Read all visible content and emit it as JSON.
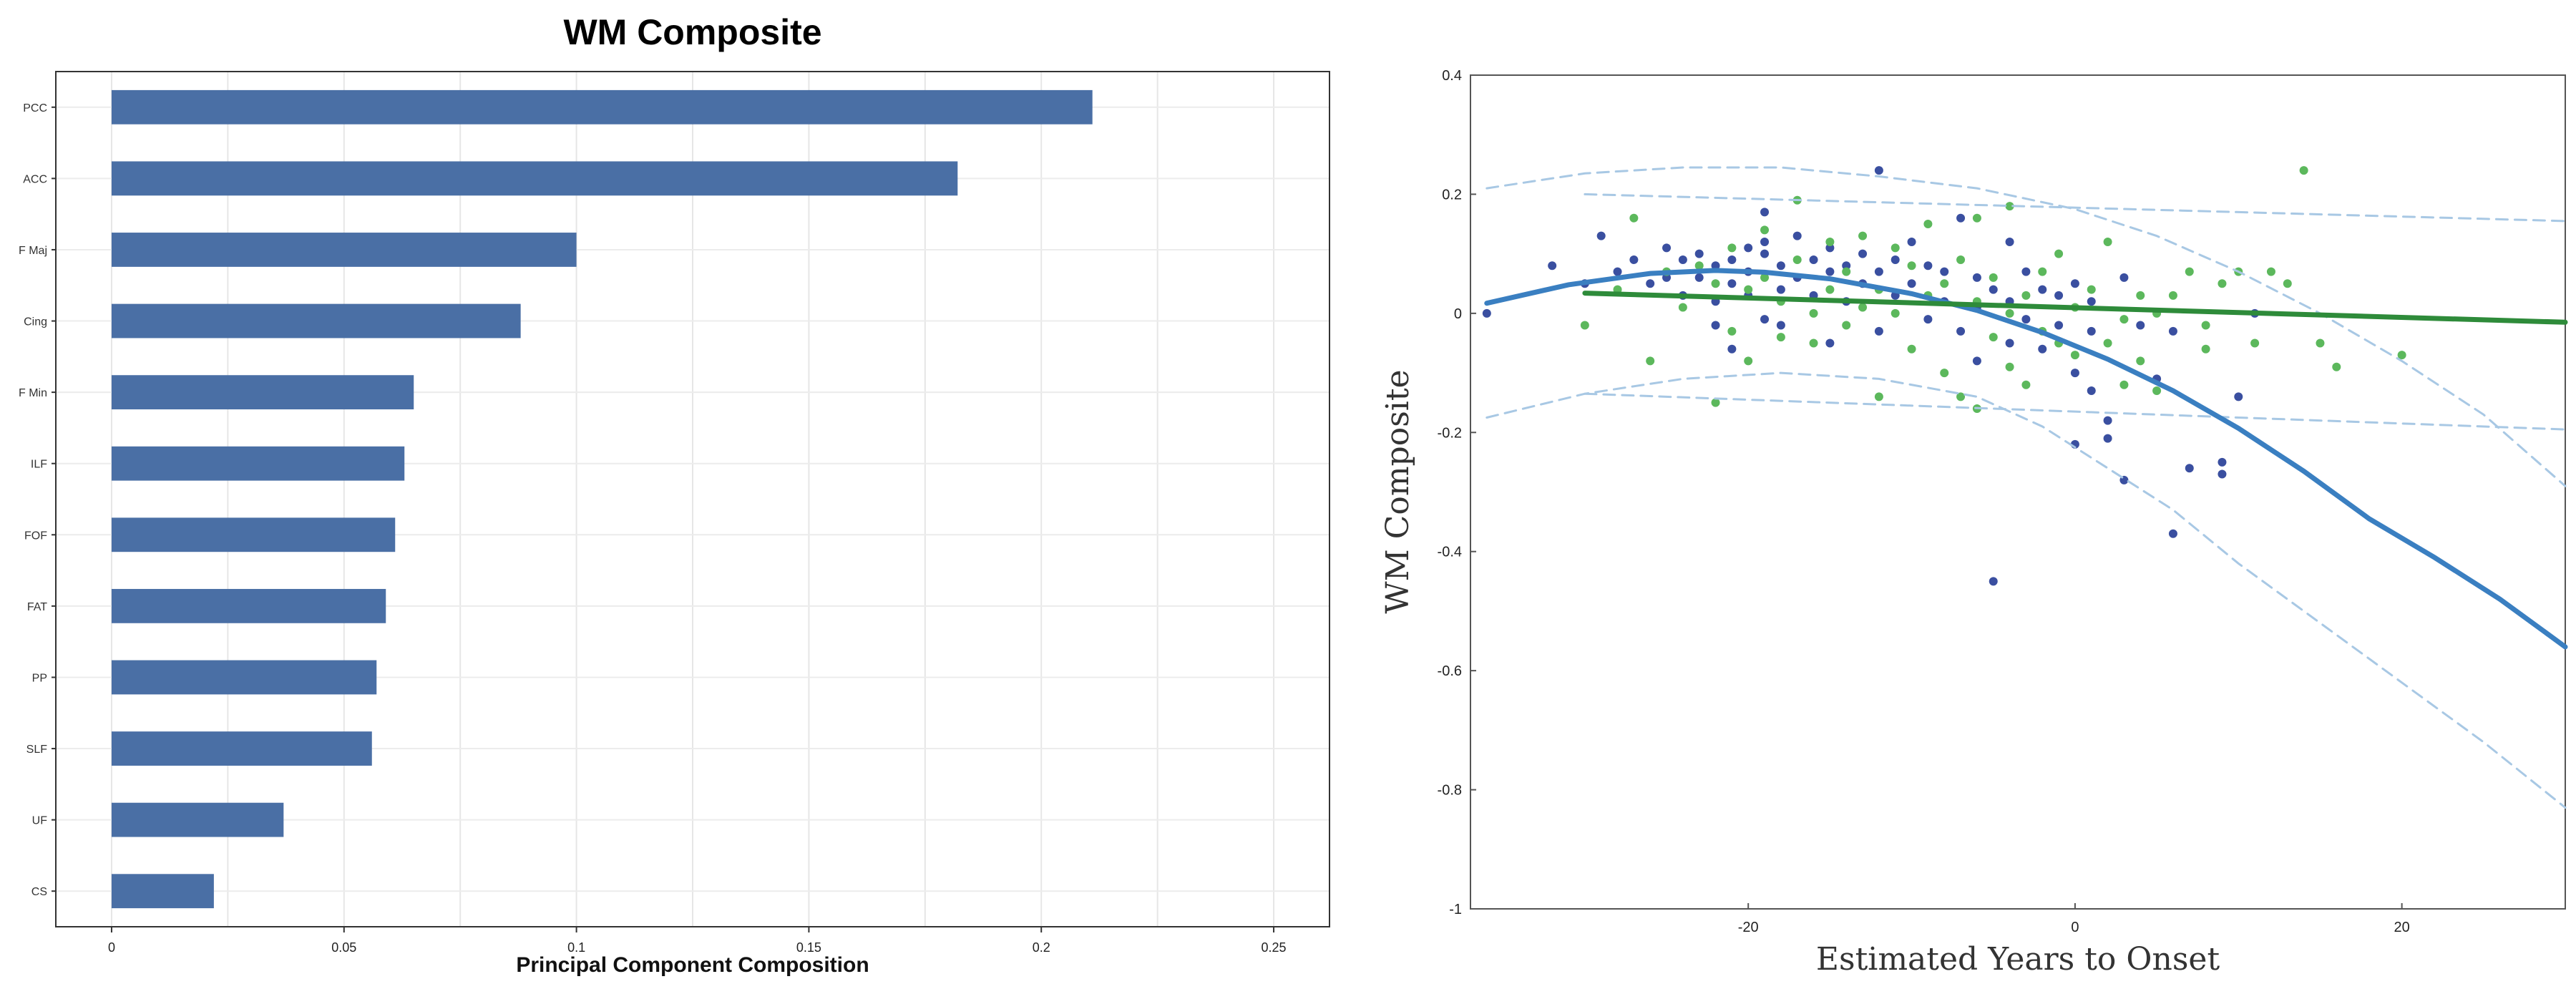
{
  "chart_data": [
    {
      "type": "bar",
      "orientation": "horizontal",
      "title": "WM Composite",
      "xlabel": "Principal Component Composition",
      "ylabel": "",
      "categories": [
        "PCC",
        "ACC",
        "F Maj",
        "Cing",
        "F Min",
        "ILF",
        "FOF",
        "FAT",
        "PP",
        "SLF",
        "UF",
        "CS"
      ],
      "values": [
        0.211,
        0.182,
        0.1,
        0.088,
        0.065,
        0.063,
        0.061,
        0.059,
        0.057,
        0.056,
        0.037,
        0.022
      ],
      "xlim": [
        -0.012,
        0.262
      ],
      "xticks": [
        0,
        0.05,
        0.1,
        0.15,
        0.2,
        0.25
      ],
      "xtick_labels": [
        "0",
        "0.05",
        "0.1",
        "0.15",
        "0.2",
        "0.25"
      ],
      "grid": true,
      "bar_color": "#4a6fa5"
    },
    {
      "type": "scatter",
      "title": "",
      "xlabel": "Estimated Years to Onset",
      "ylabel": "WM Composite",
      "xlim": [
        -37,
        30
      ],
      "ylim": [
        -1,
        0.4
      ],
      "xticks": [
        -20,
        0,
        20
      ],
      "xtick_labels": [
        "-20",
        "0",
        "20"
      ],
      "yticks": [
        0.4,
        0.2,
        0,
        -0.2,
        -0.4,
        -0.6,
        -0.8,
        -1
      ],
      "ytick_labels": [
        "0.4",
        "0.2",
        "0",
        "-0.2",
        "-0.4",
        "-0.6",
        "-0.8",
        "-1"
      ],
      "grid": false,
      "series": [
        {
          "color": "#3a4fa0",
          "points": [
            [
              -36,
              0.0
            ],
            [
              -32,
              0.08
            ],
            [
              -30,
              0.05
            ],
            [
              -29,
              0.13
            ],
            [
              -28,
              0.07
            ],
            [
              -27,
              0.09
            ],
            [
              -26,
              0.05
            ],
            [
              -25,
              0.11
            ],
            [
              -25,
              0.06
            ],
            [
              -24,
              0.09
            ],
            [
              -24,
              0.03
            ],
            [
              -23,
              0.1
            ],
            [
              -23,
              0.06
            ],
            [
              -22,
              0.08
            ],
            [
              -22,
              0.02
            ],
            [
              -22,
              -0.02
            ],
            [
              -21,
              0.09
            ],
            [
              -21,
              0.05
            ],
            [
              -21,
              -0.06
            ],
            [
              -20,
              0.11
            ],
            [
              -20,
              0.07
            ],
            [
              -20,
              0.03
            ],
            [
              -19,
              0.17
            ],
            [
              -19,
              0.1
            ],
            [
              -19,
              0.12
            ],
            [
              -19,
              -0.01
            ],
            [
              -18,
              0.08
            ],
            [
              -18,
              0.04
            ],
            [
              -18,
              -0.02
            ],
            [
              -17,
              0.13
            ],
            [
              -17,
              0.06
            ],
            [
              -16,
              0.09
            ],
            [
              -16,
              0.03
            ],
            [
              -15,
              0.11
            ],
            [
              -15,
              0.07
            ],
            [
              -15,
              -0.05
            ],
            [
              -14,
              0.08
            ],
            [
              -14,
              0.02
            ],
            [
              -13,
              0.1
            ],
            [
              -13,
              0.05
            ],
            [
              -12,
              0.24
            ],
            [
              -12,
              0.07
            ],
            [
              -12,
              -0.03
            ],
            [
              -11,
              0.09
            ],
            [
              -11,
              0.03
            ],
            [
              -10,
              0.05
            ],
            [
              -10,
              0.12
            ],
            [
              -9,
              0.08
            ],
            [
              -9,
              -0.01
            ],
            [
              -8,
              0.02
            ],
            [
              -8,
              0.07
            ],
            [
              -7,
              0.16
            ],
            [
              -7,
              -0.03
            ],
            [
              -6,
              0.06
            ],
            [
              -6,
              0.01
            ],
            [
              -6,
              -0.08
            ],
            [
              -5,
              0.04
            ],
            [
              -5,
              -0.45
            ],
            [
              -4,
              0.12
            ],
            [
              -4,
              0.02
            ],
            [
              -4,
              -0.05
            ],
            [
              -3,
              0.07
            ],
            [
              -3,
              -0.01
            ],
            [
              -2,
              0.04
            ],
            [
              -2,
              -0.06
            ],
            [
              -1,
              0.03
            ],
            [
              -1,
              -0.02
            ],
            [
              0,
              0.05
            ],
            [
              0,
              -0.1
            ],
            [
              0,
              -0.22
            ],
            [
              1,
              0.02
            ],
            [
              1,
              -0.03
            ],
            [
              1,
              -0.13
            ],
            [
              2,
              -0.18
            ],
            [
              2,
              -0.21
            ],
            [
              3,
              -0.28
            ],
            [
              3,
              0.06
            ],
            [
              4,
              -0.02
            ],
            [
              5,
              -0.11
            ],
            [
              6,
              -0.03
            ],
            [
              6,
              -0.37
            ],
            [
              7,
              -0.26
            ],
            [
              9,
              -0.25
            ],
            [
              9,
              -0.27
            ],
            [
              10,
              -0.14
            ],
            [
              11,
              0.0
            ]
          ]
        },
        {
          "color": "#5cb85c",
          "points": [
            [
              -30,
              -0.02
            ],
            [
              -28,
              0.04
            ],
            [
              -27,
              0.16
            ],
            [
              -26,
              -0.08
            ],
            [
              -25,
              0.07
            ],
            [
              -24,
              0.01
            ],
            [
              -23,
              0.08
            ],
            [
              -22,
              0.05
            ],
            [
              -22,
              -0.15
            ],
            [
              -21,
              0.11
            ],
            [
              -21,
              -0.03
            ],
            [
              -20,
              0.04
            ],
            [
              -20,
              -0.08
            ],
            [
              -19,
              0.06
            ],
            [
              -19,
              0.14
            ],
            [
              -18,
              0.02
            ],
            [
              -18,
              -0.04
            ],
            [
              -17,
              0.19
            ],
            [
              -17,
              0.09
            ],
            [
              -16,
              0.0
            ],
            [
              -16,
              -0.05
            ],
            [
              -15,
              0.12
            ],
            [
              -15,
              0.04
            ],
            [
              -14,
              0.07
            ],
            [
              -14,
              -0.02
            ],
            [
              -13,
              0.13
            ],
            [
              -13,
              0.01
            ],
            [
              -12,
              0.04
            ],
            [
              -12,
              -0.14
            ],
            [
              -11,
              0.11
            ],
            [
              -11,
              0.0
            ],
            [
              -10,
              0.08
            ],
            [
              -10,
              -0.06
            ],
            [
              -9,
              0.15
            ],
            [
              -9,
              0.03
            ],
            [
              -8,
              0.05
            ],
            [
              -8,
              -0.1
            ],
            [
              -7,
              0.09
            ],
            [
              -7,
              -0.14
            ],
            [
              -6,
              0.16
            ],
            [
              -6,
              0.02
            ],
            [
              -6,
              -0.16
            ],
            [
              -5,
              0.06
            ],
            [
              -5,
              -0.04
            ],
            [
              -4,
              0.18
            ],
            [
              -4,
              0.0
            ],
            [
              -4,
              -0.09
            ],
            [
              -3,
              0.03
            ],
            [
              -3,
              -0.12
            ],
            [
              -2,
              0.07
            ],
            [
              -2,
              -0.03
            ],
            [
              -1,
              0.1
            ],
            [
              -1,
              -0.05
            ],
            [
              0,
              0.01
            ],
            [
              0,
              -0.07
            ],
            [
              1,
              0.04
            ],
            [
              2,
              -0.05
            ],
            [
              2,
              0.12
            ],
            [
              3,
              -0.01
            ],
            [
              3,
              -0.12
            ],
            [
              4,
              0.03
            ],
            [
              4,
              -0.08
            ],
            [
              5,
              0.0
            ],
            [
              5,
              -0.13
            ],
            [
              6,
              0.03
            ],
            [
              7,
              0.07
            ],
            [
              8,
              -0.02
            ],
            [
              8,
              -0.06
            ],
            [
              9,
              0.05
            ],
            [
              10,
              0.07
            ],
            [
              11,
              -0.05
            ],
            [
              12,
              0.07
            ],
            [
              13,
              0.05
            ],
            [
              14,
              0.24
            ],
            [
              15,
              -0.05
            ],
            [
              16,
              -0.09
            ],
            [
              20,
              -0.07
            ]
          ]
        }
      ],
      "curves": [
        {
          "color": "#3a7fc1",
          "style": "solid",
          "points": [
            [
              -36,
              0.017
            ],
            [
              -31,
              0.048
            ],
            [
              -26,
              0.067
            ],
            [
              -22,
              0.072
            ],
            [
              -19,
              0.069
            ],
            [
              -15,
              0.058
            ],
            [
              -10,
              0.033
            ],
            [
              -6,
              0.005
            ],
            [
              -2,
              -0.032
            ],
            [
              2,
              -0.077
            ],
            [
              6,
              -0.13
            ],
            [
              10,
              -0.193
            ],
            [
              14,
              -0.265
            ],
            [
              18,
              -0.345
            ],
            [
              22,
              -0.41
            ],
            [
              26,
              -0.48
            ],
            [
              30,
              -0.56
            ]
          ]
        },
        {
          "color": "#2e8b3a",
          "style": "solid",
          "points": [
            [
              -30,
              0.034
            ],
            [
              30,
              -0.015
            ]
          ]
        },
        {
          "color": "#a8c8e4",
          "style": "dashed",
          "points": [
            [
              -36,
              0.21
            ],
            [
              -30,
              0.235
            ],
            [
              -24,
              0.245
            ],
            [
              -18,
              0.245
            ],
            [
              -12,
              0.23
            ],
            [
              -6,
              0.21
            ],
            [
              0,
              0.175
            ],
            [
              5,
              0.13
            ],
            [
              10,
              0.07
            ],
            [
              15,
              0.0
            ],
            [
              20,
              -0.08
            ],
            [
              25,
              -0.17
            ],
            [
              30,
              -0.29
            ]
          ]
        },
        {
          "color": "#a8c8e4",
          "style": "dashed",
          "points": [
            [
              -36,
              -0.175
            ],
            [
              -30,
              -0.135
            ],
            [
              -24,
              -0.11
            ],
            [
              -18,
              -0.1
            ],
            [
              -12,
              -0.11
            ],
            [
              -6,
              -0.14
            ],
            [
              -2,
              -0.19
            ],
            [
              2,
              -0.26
            ],
            [
              6,
              -0.33
            ],
            [
              10,
              -0.42
            ],
            [
              15,
              -0.52
            ],
            [
              20,
              -0.62
            ],
            [
              25,
              -0.72
            ],
            [
              30,
              -0.83
            ]
          ]
        },
        {
          "color": "#a8c8e4",
          "style": "dashed",
          "points": [
            [
              -30,
              0.2
            ],
            [
              30,
              0.155
            ]
          ]
        },
        {
          "color": "#a8c8e4",
          "style": "dashed",
          "points": [
            [
              -30,
              -0.135
            ],
            [
              30,
              -0.195
            ]
          ]
        }
      ]
    }
  ]
}
